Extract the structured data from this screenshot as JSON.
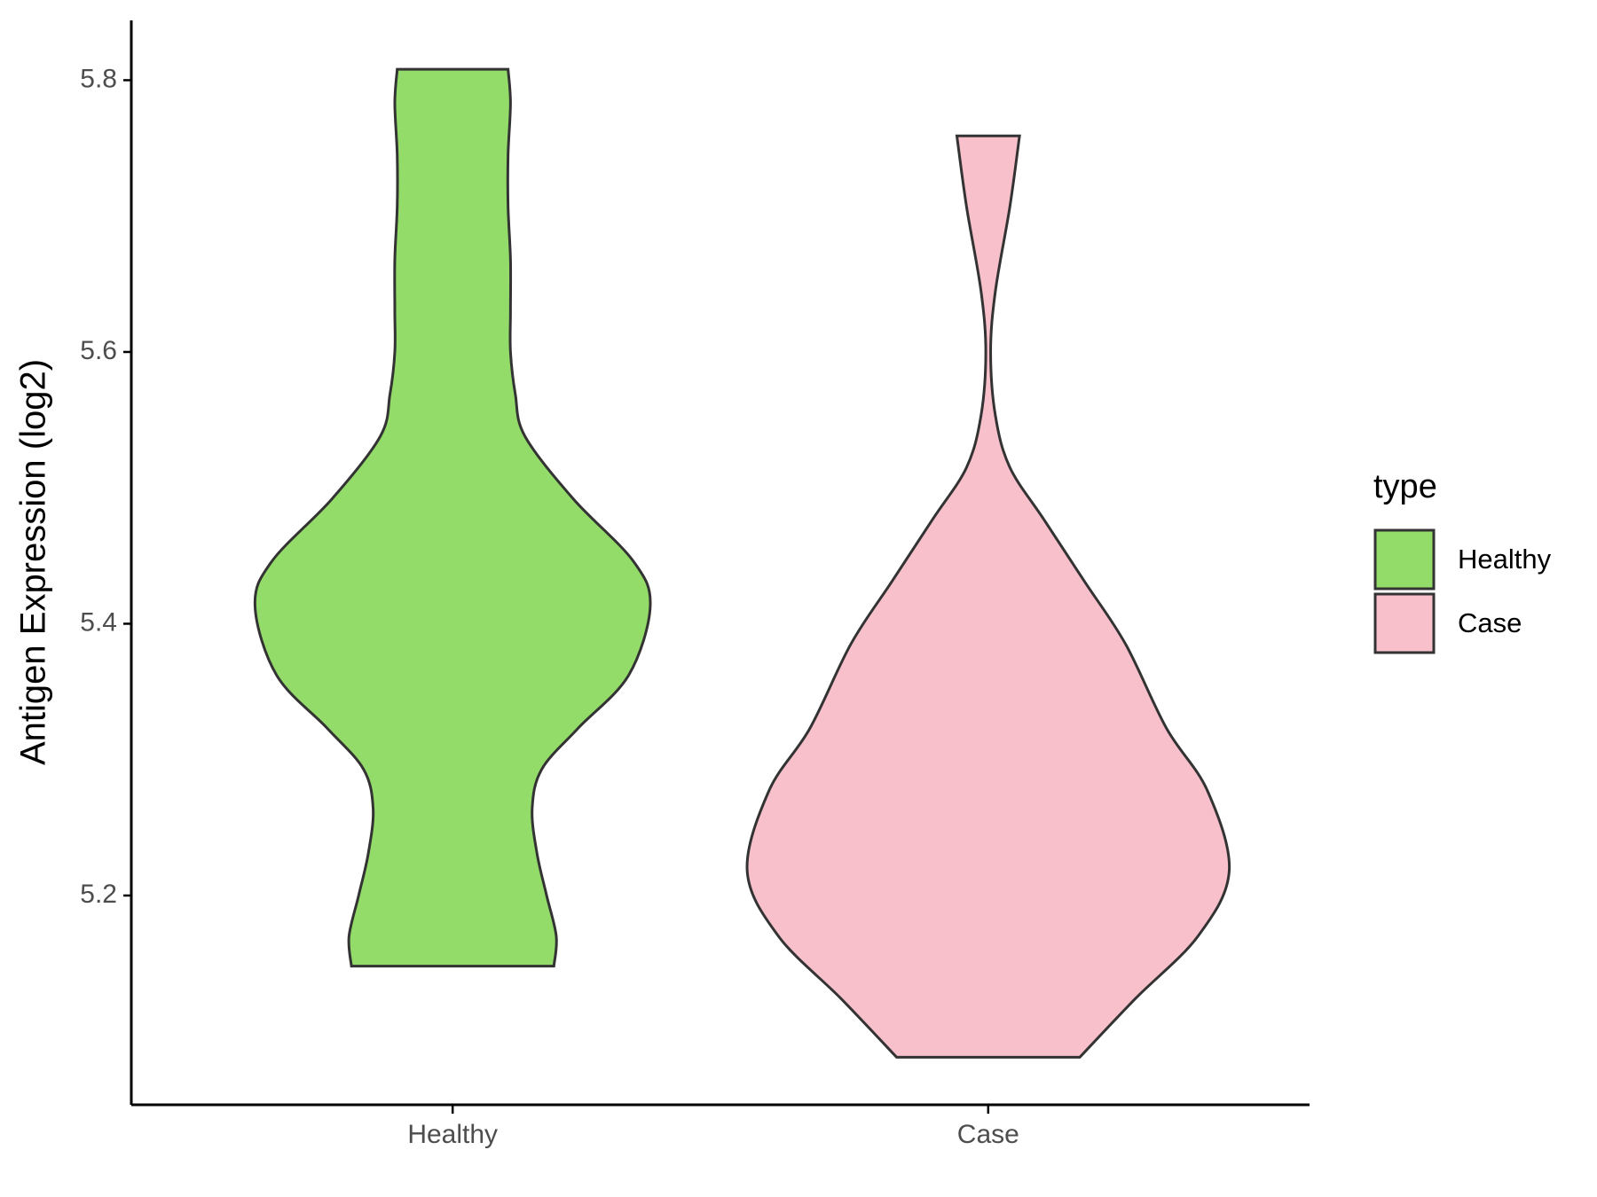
{
  "chart_data": {
    "type": "violin",
    "ylabel": "Antigen Expression (log2)",
    "categories": [
      "Healthy",
      "Case"
    ],
    "legend_title": "type",
    "legend_position": "right",
    "ylim": [
      5.046,
      5.844
    ],
    "yticks": [
      5.2,
      5.4,
      5.6,
      5.8
    ],
    "series": [
      {
        "name": "Healthy",
        "color": "#93dc6a",
        "y": [
          5.148,
          5.17,
          5.2,
          5.231,
          5.264,
          5.293,
          5.323,
          5.362,
          5.413,
          5.446,
          5.492,
          5.538,
          5.569,
          5.6,
          5.63,
          5.668,
          5.707,
          5.745,
          5.783,
          5.808
        ],
        "density": [
          0.42,
          0.43,
          0.39,
          0.35,
          0.33,
          0.37,
          0.52,
          0.73,
          0.82,
          0.75,
          0.5,
          0.3,
          0.26,
          0.24,
          0.24,
          0.24,
          0.23,
          0.23,
          0.24,
          0.23
        ]
      },
      {
        "name": "Case",
        "color": "#f7c0cb",
        "y": [
          5.081,
          5.124,
          5.17,
          5.218,
          5.277,
          5.323,
          5.385,
          5.431,
          5.477,
          5.515,
          5.553,
          5.6,
          5.645,
          5.707,
          5.759
        ],
        "density": [
          0.38,
          0.61,
          0.87,
          1,
          0.91,
          0.74,
          0.57,
          0.4,
          0.23,
          0.09,
          0.03,
          0.01,
          0.03,
          0.09,
          0.13
        ]
      }
    ]
  }
}
